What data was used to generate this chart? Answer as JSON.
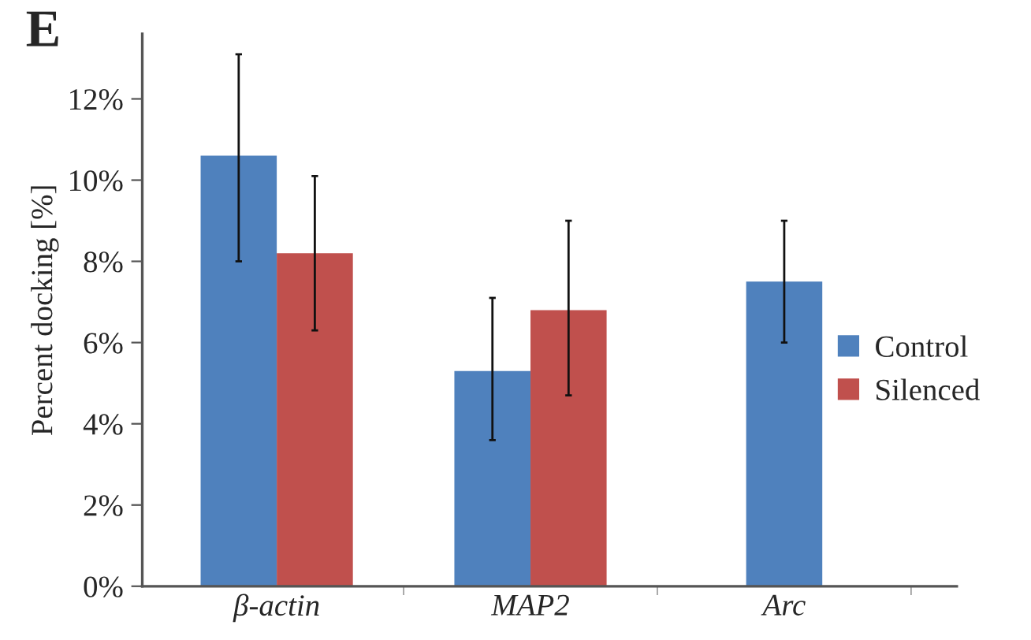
{
  "chart_data": {
    "type": "bar",
    "title": "E",
    "ylabel": "Percent docking [%]",
    "categories": [
      "β-actin",
      "MAP2",
      "Arc"
    ],
    "series": [
      {
        "name": "Control",
        "color": "#4f81bd",
        "values": [
          10.6,
          5.3,
          7.5
        ],
        "errors": [
          [
            8.0,
            13.1
          ],
          [
            3.6,
            7.1
          ],
          [
            6.0,
            9.0
          ]
        ]
      },
      {
        "name": "Silenced",
        "color": "#c0504d",
        "values": [
          8.2,
          6.8,
          null
        ],
        "errors": [
          [
            6.3,
            10.1
          ],
          [
            4.7,
            9.0
          ],
          null
        ]
      }
    ],
    "ylim": [
      0,
      13.6
    ],
    "yticks": [
      {
        "value": 0,
        "label": "0%"
      },
      {
        "value": 2,
        "label": "2%"
      },
      {
        "value": 4,
        "label": "4%"
      },
      {
        "value": 6,
        "label": "6%"
      },
      {
        "value": 8,
        "label": "8%"
      },
      {
        "value": 10,
        "label": "10%"
      },
      {
        "value": 12,
        "label": "12%"
      }
    ],
    "grid": false,
    "legend": "right"
  }
}
